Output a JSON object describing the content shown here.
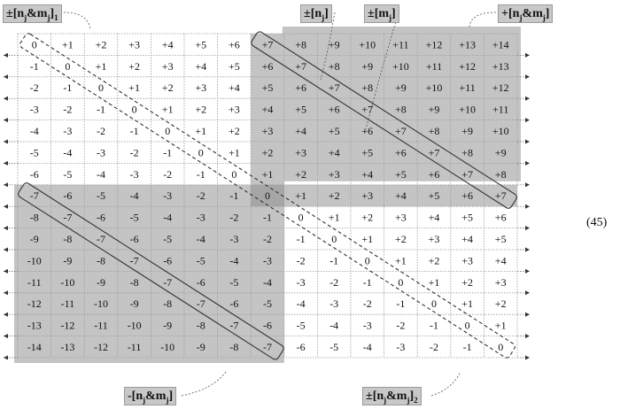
{
  "matrix": {
    "rows": [
      [
        "0",
        "+1",
        "+2",
        "+3",
        "+4",
        "+5",
        "+6",
        "+7",
        "+8",
        "+9",
        "+10",
        "+11",
        "+12",
        "+13",
        "+14"
      ],
      [
        "-1",
        "0",
        "+1",
        "+2",
        "+3",
        "+4",
        "+5",
        "+6",
        "+7",
        "+8",
        "+9",
        "+10",
        "+11",
        "+12",
        "+13"
      ],
      [
        "-2",
        "-1",
        "0",
        "+1",
        "+2",
        "+3",
        "+4",
        "+5",
        "+6",
        "+7",
        "+8",
        "+9",
        "+10",
        "+11",
        "+12"
      ],
      [
        "-3",
        "-2",
        "-1",
        "0",
        "+1",
        "+2",
        "+3",
        "+4",
        "+5",
        "+6",
        "+7",
        "+8",
        "+9",
        "+10",
        "+11"
      ],
      [
        "-4",
        "-3",
        "-2",
        "-1",
        "0",
        "+1",
        "+2",
        "+3",
        "+4",
        "+5",
        "+6",
        "+7",
        "+8",
        "+9",
        "+10"
      ],
      [
        "-5",
        "-4",
        "-3",
        "-2",
        "-1",
        "0",
        "+1",
        "+2",
        "+3",
        "+4",
        "+5",
        "+6",
        "+7",
        "+8",
        "+9"
      ],
      [
        "-6",
        "-5",
        "-4",
        "-3",
        "-2",
        "-1",
        "0",
        "+1",
        "+2",
        "+3",
        "+4",
        "+5",
        "+6",
        "+7",
        "+8"
      ],
      [
        "-7",
        "-6",
        "-5",
        "-4",
        "-3",
        "-2",
        "-1",
        "0",
        "+1",
        "+2",
        "+3",
        "+4",
        "+5",
        "+6",
        "+7"
      ],
      [
        "-8",
        "-7",
        "-6",
        "-5",
        "-4",
        "-3",
        "-2",
        "-1",
        "0",
        "+1",
        "+2",
        "+3",
        "+4",
        "+5",
        "+6"
      ],
      [
        "-9",
        "-8",
        "-7",
        "-6",
        "-5",
        "-4",
        "-3",
        "-2",
        "-1",
        "0",
        "+1",
        "+2",
        "+3",
        "+4",
        "+5"
      ],
      [
        "-10",
        "-9",
        "-8",
        "-7",
        "-6",
        "-5",
        "-4",
        "-3",
        "-2",
        "-1",
        "0",
        "+1",
        "+2",
        "+3",
        "+4"
      ],
      [
        "-11",
        "-10",
        "-9",
        "-8",
        "-7",
        "-6",
        "-5",
        "-4",
        "-3",
        "-2",
        "-1",
        "0",
        "+1",
        "+2",
        "+3"
      ],
      [
        "-12",
        "-11",
        "-10",
        "-9",
        "-8",
        "-7",
        "-6",
        "-5",
        "-4",
        "-3",
        "-2",
        "-1",
        "0",
        "+1",
        "+2"
      ],
      [
        "-13",
        "-12",
        "-11",
        "-10",
        "-9",
        "-8",
        "-7",
        "-6",
        "-5",
        "-4",
        "-3",
        "-2",
        "-1",
        "0",
        "+1"
      ],
      [
        "-14",
        "-13",
        "-12",
        "-11",
        "-10",
        "-9",
        "-8",
        "-7",
        "-6",
        "-5",
        "-4",
        "-3",
        "-2",
        "-1",
        "0"
      ]
    ]
  },
  "labels": {
    "nm1": {
      "sign": "±",
      "main": "[n",
      "sub1": "j",
      "mid": "&m",
      "sub2": "j",
      "end": "]",
      "tail": "1"
    },
    "n": {
      "sign": "±",
      "main": "[n",
      "sub1": "j",
      "end": "]"
    },
    "m": {
      "sign": "±",
      "main": "[m",
      "sub1": "j",
      "end": "]"
    },
    "plus": {
      "sign": "+",
      "main": "[n",
      "sub1": "j",
      "mid": "&m",
      "sub2": "j",
      "end": "]"
    },
    "minus": {
      "sign": "-",
      "main": "[n",
      "sub1": "j",
      "mid": "&m",
      "sub2": "j",
      "end": "]"
    },
    "nm2": {
      "sign": "±",
      "main": "[n",
      "sub1": "j",
      "mid": "&m",
      "sub2": "j",
      "end": "]",
      "tail": "2"
    }
  },
  "equation_number": "(45)",
  "colors": {
    "shade": "#c4c4c4",
    "shade_dark": "#a6a6a6",
    "grid": "#9c9c9c"
  }
}
